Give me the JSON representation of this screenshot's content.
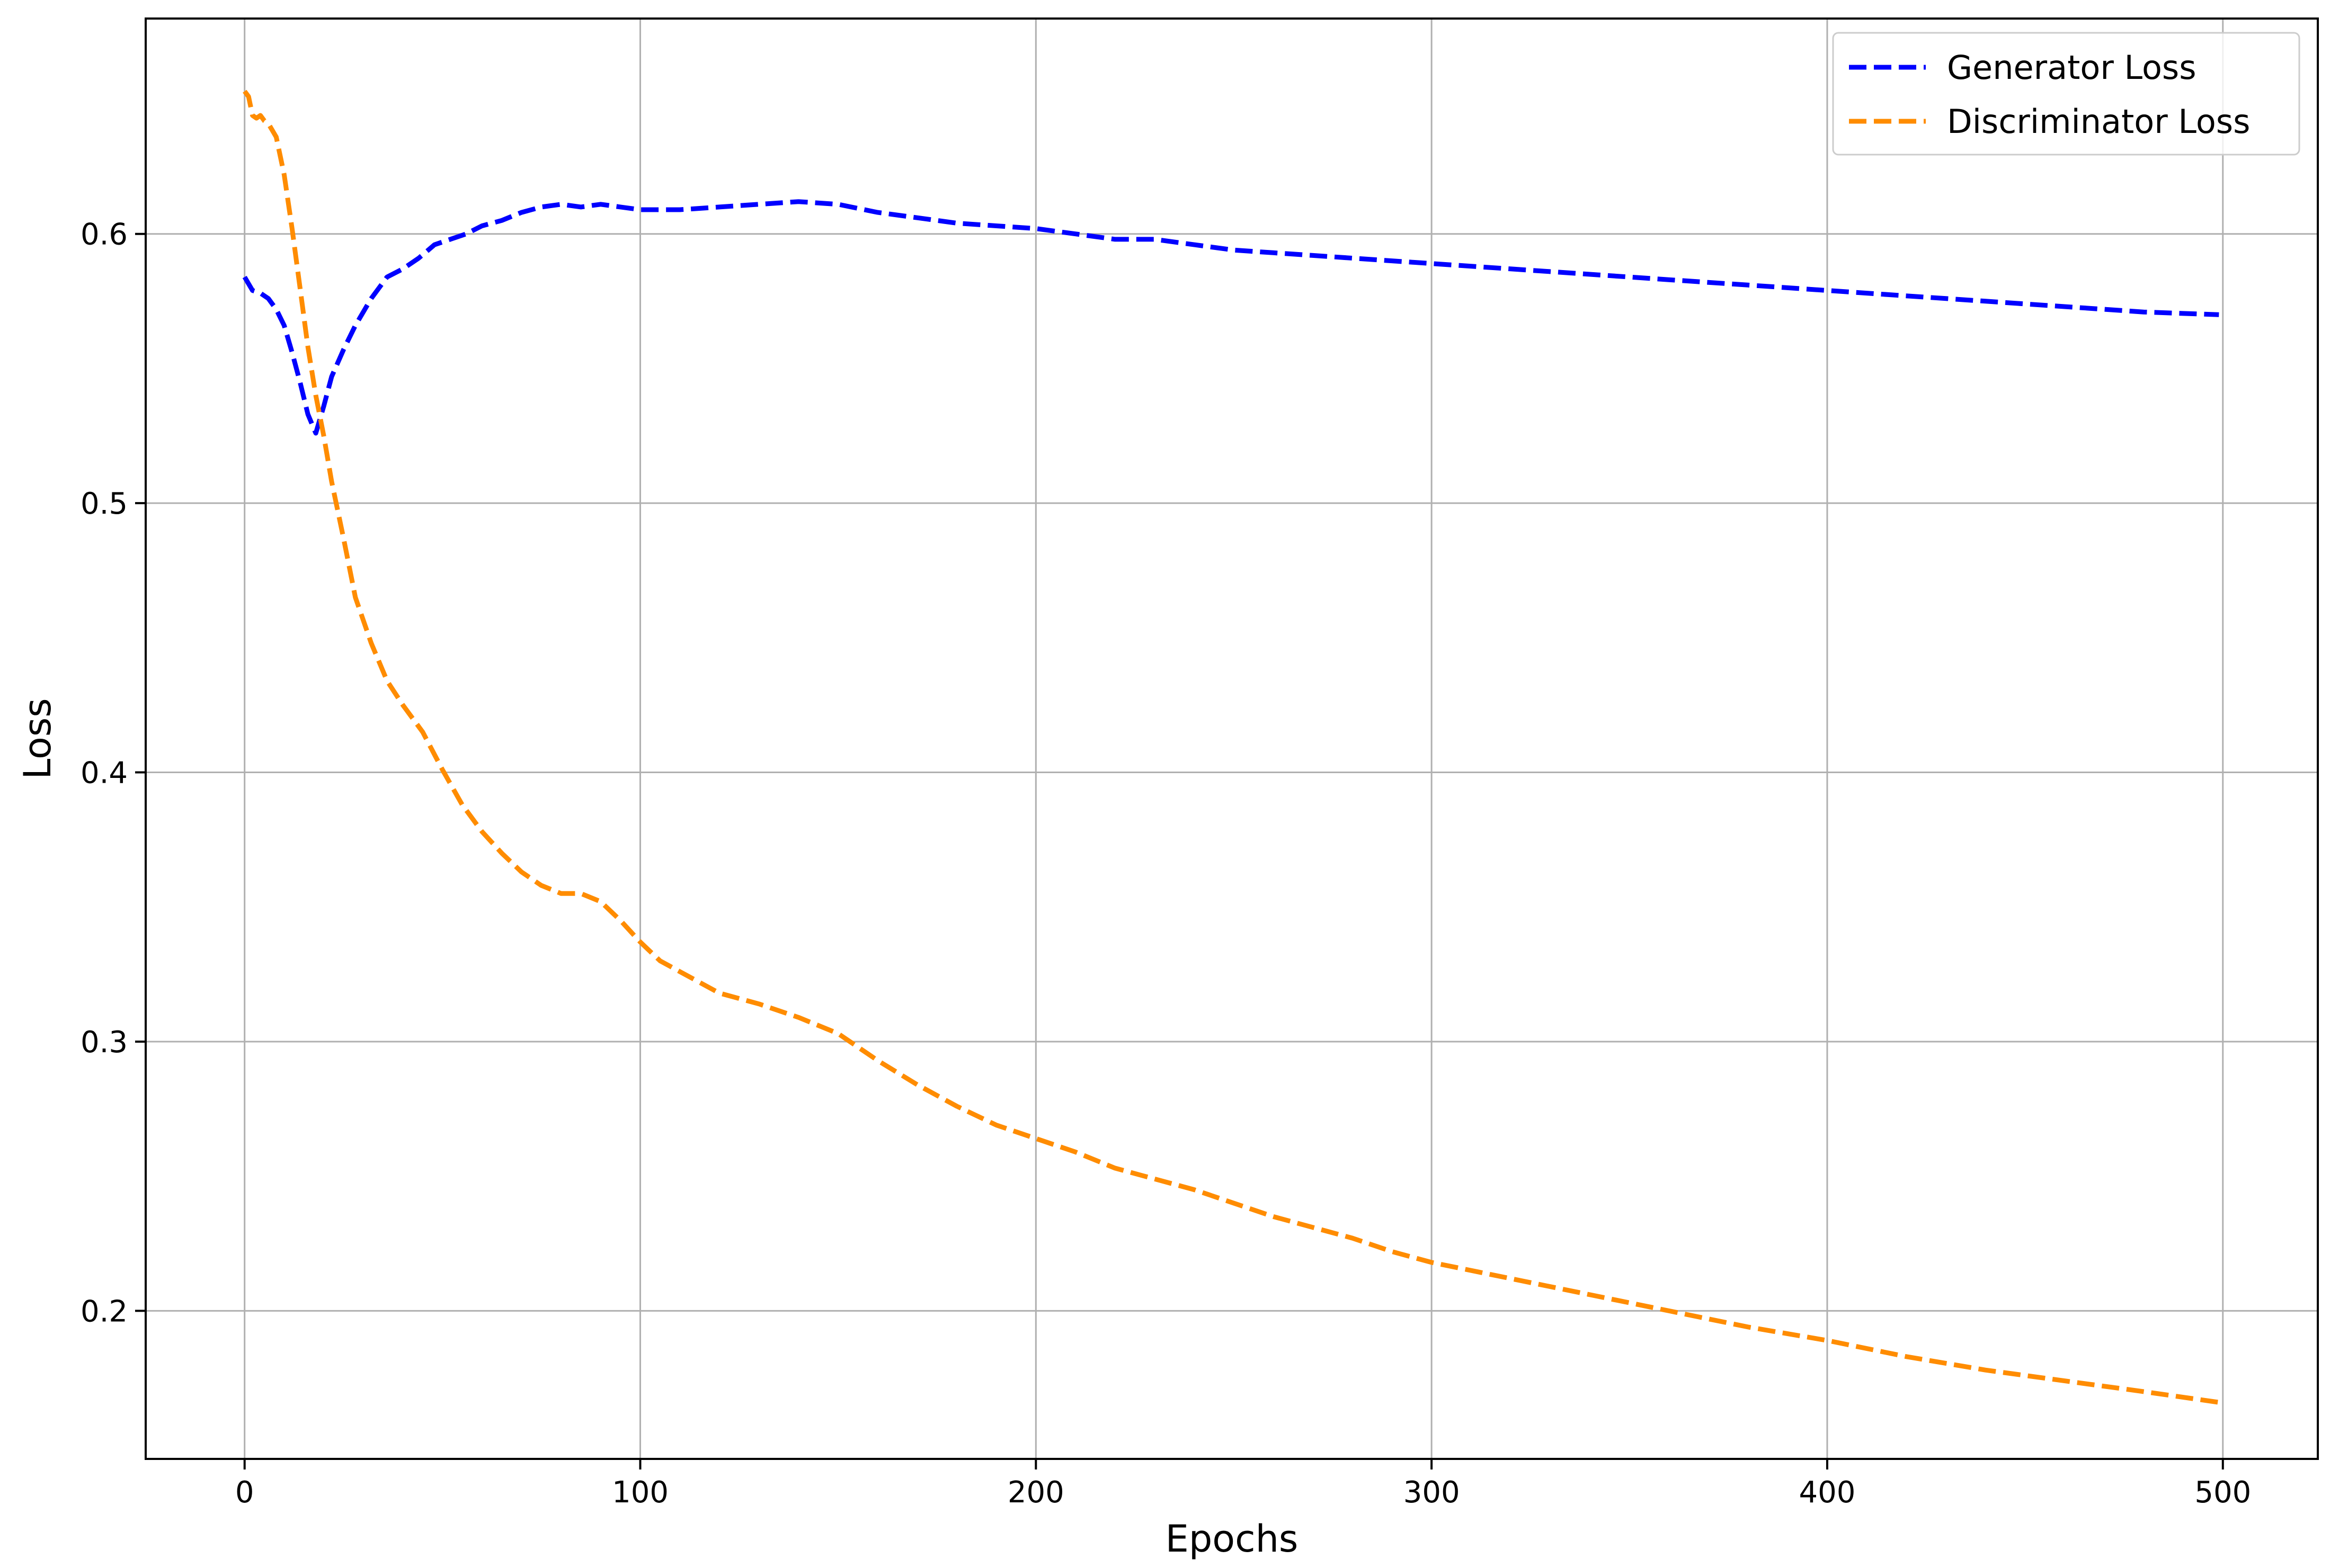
{
  "chart_data": {
    "type": "line",
    "title": "",
    "xlabel": "Epochs",
    "ylabel": "Loss",
    "xlim": [
      -25,
      524
    ],
    "ylim": [
      0.145,
      0.68
    ],
    "x_ticks": [
      0,
      100,
      200,
      300,
      400,
      500
    ],
    "x_tick_labels": [
      "0",
      "100",
      "200",
      "300",
      "400",
      "500"
    ],
    "y_ticks": [
      0.2,
      0.3,
      0.4,
      0.5,
      0.6
    ],
    "y_tick_labels": [
      "0.2",
      "0.3",
      "0.4",
      "0.5",
      "0.6"
    ],
    "grid": true,
    "legend_position": "top-right",
    "series": [
      {
        "name": "Generator Loss",
        "color": "#0000ff",
        "line_style": "dashed",
        "x": [
          0,
          2,
          4,
          6,
          8,
          10,
          12,
          14,
          16,
          18,
          20,
          22,
          25,
          28,
          32,
          36,
          40,
          44,
          48,
          52,
          56,
          60,
          65,
          70,
          75,
          80,
          85,
          90,
          95,
          100,
          105,
          110,
          120,
          130,
          140,
          150,
          160,
          170,
          180,
          190,
          200,
          210,
          220,
          230,
          240,
          250,
          260,
          270,
          280,
          290,
          300,
          320,
          340,
          360,
          380,
          400,
          420,
          440,
          460,
          480,
          499
        ],
        "y": [
          0.584,
          0.579,
          0.578,
          0.576,
          0.572,
          0.566,
          0.556,
          0.545,
          0.533,
          0.526,
          0.536,
          0.547,
          0.557,
          0.566,
          0.576,
          0.584,
          0.587,
          0.591,
          0.596,
          0.598,
          0.6,
          0.603,
          0.605,
          0.608,
          0.61,
          0.611,
          0.61,
          0.611,
          0.61,
          0.609,
          0.609,
          0.609,
          0.61,
          0.611,
          0.612,
          0.611,
          0.608,
          0.606,
          0.604,
          0.603,
          0.602,
          0.6,
          0.598,
          0.598,
          0.596,
          0.594,
          0.593,
          0.592,
          0.591,
          0.59,
          0.589,
          0.587,
          0.585,
          0.583,
          0.581,
          0.579,
          0.577,
          0.575,
          0.573,
          0.571,
          0.57
        ]
      },
      {
        "name": "Discriminator Loss",
        "color": "#ff8c00",
        "line_style": "dashed",
        "x": [
          0,
          1,
          2,
          3,
          4,
          5,
          6,
          8,
          10,
          12,
          14,
          16,
          18,
          20,
          22,
          25,
          28,
          32,
          36,
          40,
          45,
          50,
          55,
          60,
          65,
          70,
          75,
          80,
          85,
          90,
          95,
          100,
          105,
          110,
          120,
          130,
          140,
          150,
          160,
          170,
          180,
          190,
          200,
          210,
          220,
          230,
          240,
          250,
          260,
          270,
          280,
          290,
          300,
          320,
          340,
          360,
          380,
          400,
          420,
          440,
          460,
          480,
          499
        ],
        "y": [
          0.653,
          0.651,
          0.644,
          0.643,
          0.644,
          0.642,
          0.641,
          0.636,
          0.622,
          0.602,
          0.58,
          0.558,
          0.54,
          0.525,
          0.508,
          0.487,
          0.465,
          0.448,
          0.434,
          0.425,
          0.415,
          0.401,
          0.388,
          0.378,
          0.37,
          0.363,
          0.358,
          0.355,
          0.355,
          0.352,
          0.345,
          0.337,
          0.33,
          0.326,
          0.318,
          0.314,
          0.309,
          0.303,
          0.293,
          0.284,
          0.276,
          0.269,
          0.264,
          0.259,
          0.253,
          0.249,
          0.245,
          0.24,
          0.235,
          0.231,
          0.227,
          0.222,
          0.218,
          0.212,
          0.206,
          0.2,
          0.194,
          0.189,
          0.183,
          0.178,
          0.174,
          0.17,
          0.166
        ]
      }
    ]
  }
}
